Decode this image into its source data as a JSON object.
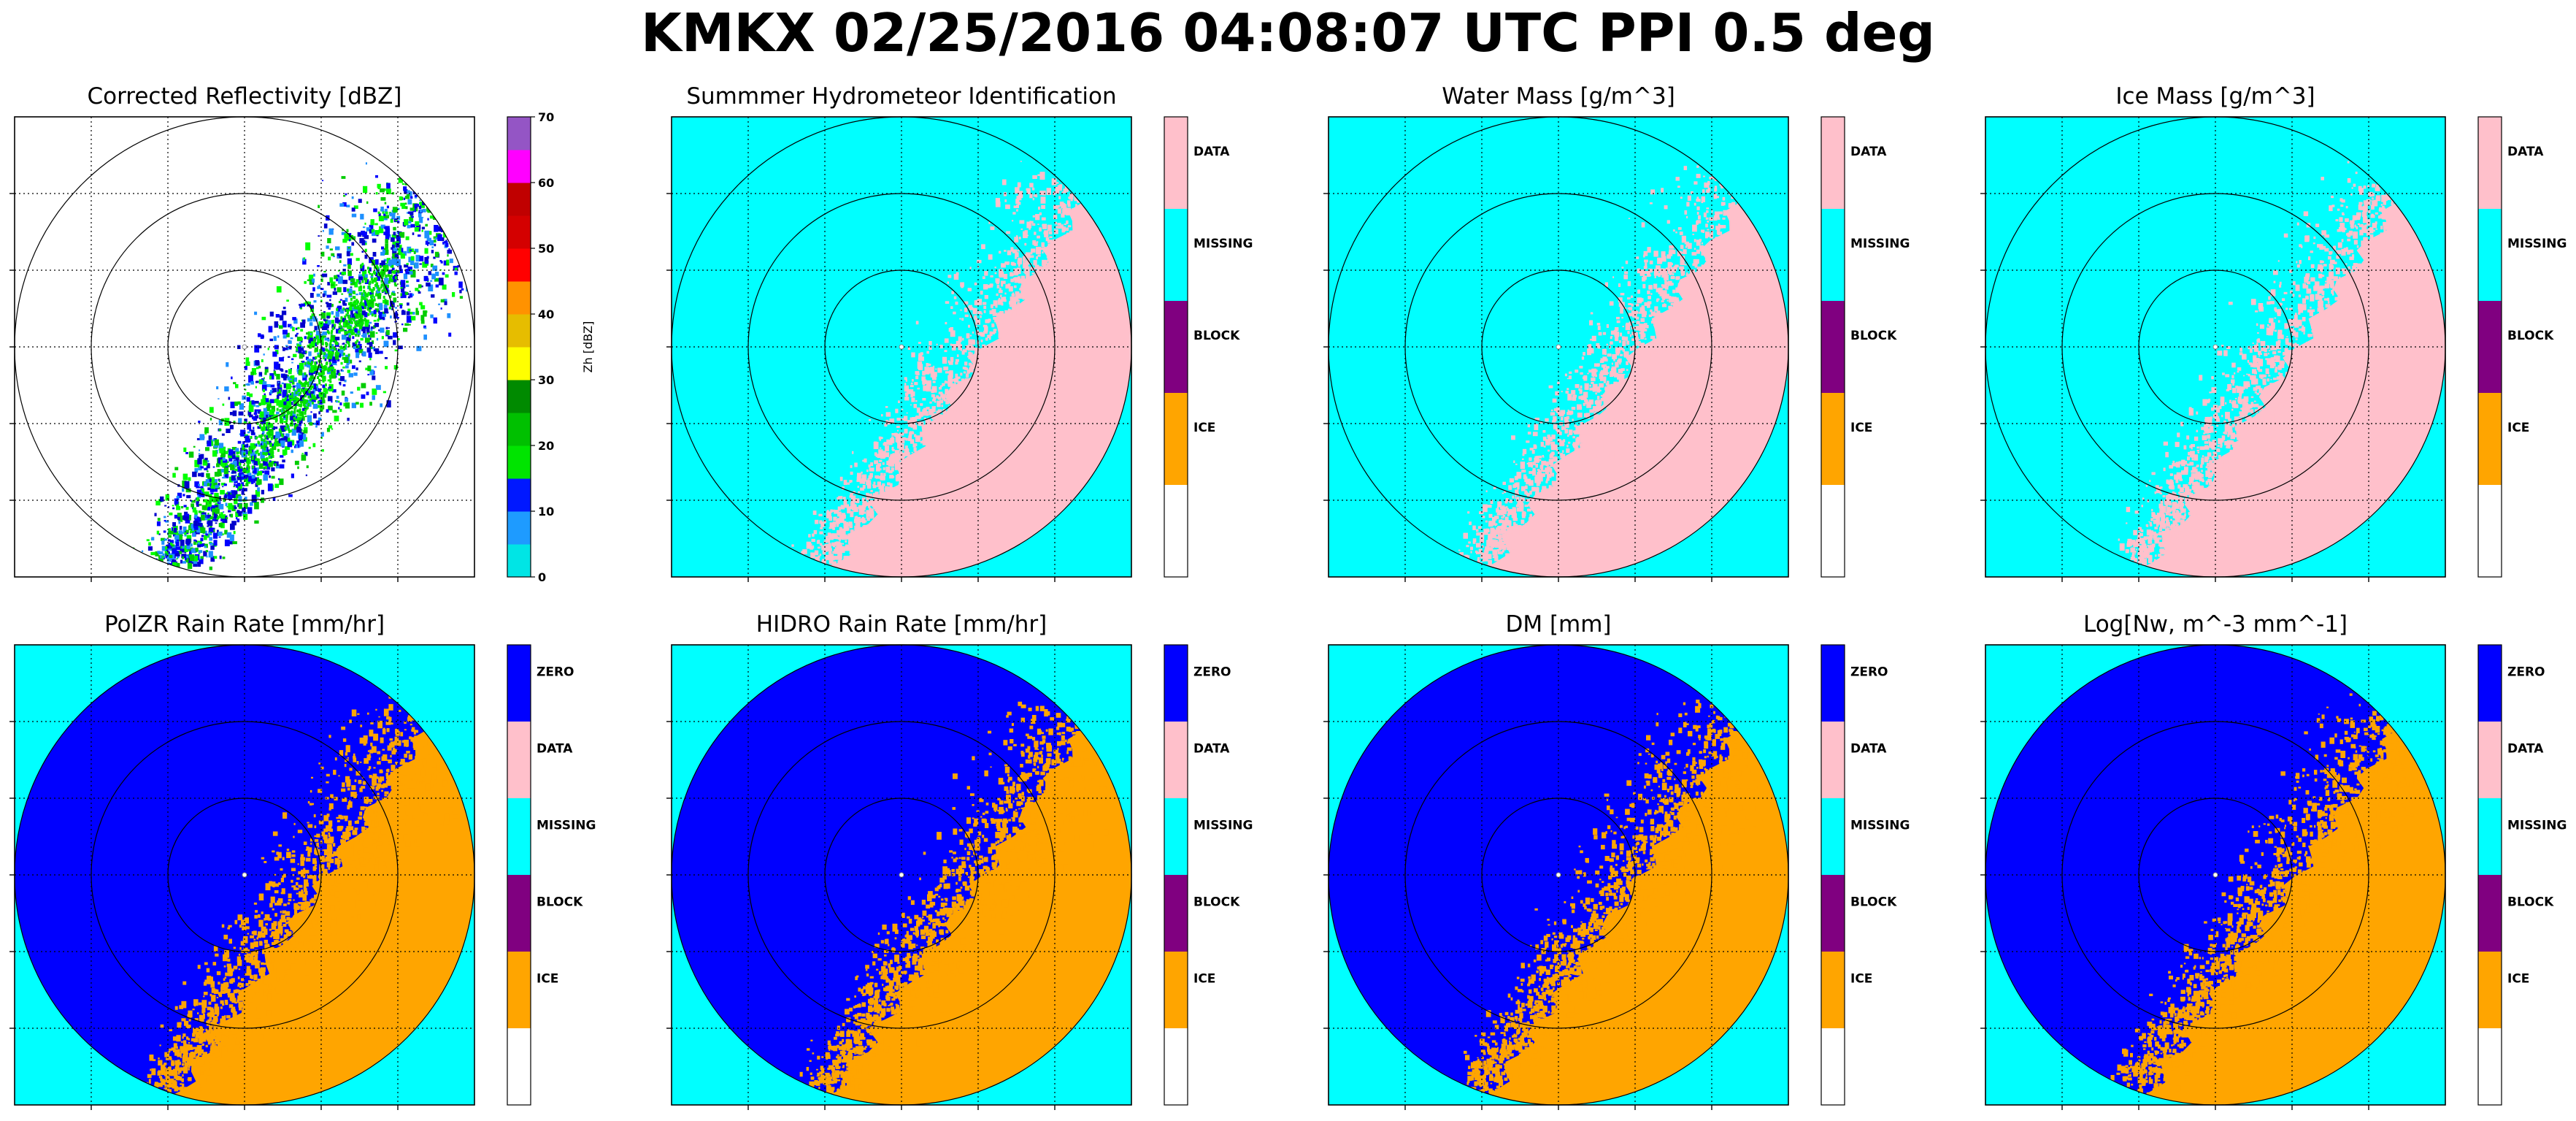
{
  "figure": {
    "suptitle": "KMKX 02/25/2016 04:08:07 UTC PPI 0.5 deg"
  },
  "chart_data": [
    {
      "type": "heatmap",
      "title": "Corrected Reflectivity [dBZ]",
      "background": "#ffffff",
      "echo_palette": [
        "#0000ff",
        "#1e90ff",
        "#00cc00",
        "#00ff00",
        "#0000cc"
      ],
      "colorbar": {
        "kind": "continuous",
        "label": "Zh [dBZ]",
        "range": [
          0,
          70
        ],
        "ticks": [
          "0",
          "10",
          "20",
          "30",
          "40",
          "50",
          "60",
          "70"
        ],
        "colors": [
          "#00e5e5",
          "#1e9bff",
          "#0018ff",
          "#00e400",
          "#00c000",
          "#008a00",
          "#ffff00",
          "#e6bd00",
          "#ff9200",
          "#ff0000",
          "#d40000",
          "#c00000",
          "#ff00ff",
          "#9455c5"
        ]
      }
    },
    {
      "type": "heatmap",
      "title": "Summmer Hydrometeor Identification",
      "background": "#00ffff",
      "echo_color": "#ffc0cb",
      "colorbar": {
        "kind": "categorical",
        "entries": [
          {
            "label": "DATA",
            "color": "#ffc0cb"
          },
          {
            "label": "MISSING",
            "color": "#00ffff"
          },
          {
            "label": "BLOCK",
            "color": "#800080"
          },
          {
            "label": "ICE",
            "color": "#ffa500"
          },
          {
            "label": "",
            "color": "#ffffff"
          }
        ]
      }
    },
    {
      "type": "heatmap",
      "title": "Water Mass [g/m^3]",
      "background": "#00ffff",
      "echo_color": "#ffc0cb",
      "colorbar": {
        "kind": "categorical",
        "entries": [
          {
            "label": "DATA",
            "color": "#ffc0cb"
          },
          {
            "label": "MISSING",
            "color": "#00ffff"
          },
          {
            "label": "BLOCK",
            "color": "#800080"
          },
          {
            "label": "ICE",
            "color": "#ffa500"
          },
          {
            "label": "",
            "color": "#ffffff"
          }
        ]
      }
    },
    {
      "type": "heatmap",
      "title": "Ice Mass [g/m^3]",
      "background": "#00ffff",
      "echo_color": "#ffc0cb",
      "colorbar": {
        "kind": "categorical",
        "entries": [
          {
            "label": "DATA",
            "color": "#ffc0cb"
          },
          {
            "label": "MISSING",
            "color": "#00ffff"
          },
          {
            "label": "BLOCK",
            "color": "#800080"
          },
          {
            "label": "ICE",
            "color": "#ffa500"
          },
          {
            "label": "",
            "color": "#ffffff"
          }
        ]
      }
    },
    {
      "type": "heatmap",
      "title": "PolZR Rain Rate [mm/hr]",
      "background": "#00ffff",
      "disk_color": "#0000ff",
      "echo_color": "#ffa500",
      "colorbar": {
        "kind": "categorical",
        "entries": [
          {
            "label": "ZERO",
            "color": "#0000ff"
          },
          {
            "label": "DATA",
            "color": "#ffc0cb"
          },
          {
            "label": "MISSING",
            "color": "#00ffff"
          },
          {
            "label": "BLOCK",
            "color": "#800080"
          },
          {
            "label": "ICE",
            "color": "#ffa500"
          },
          {
            "label": "",
            "color": "#ffffff"
          }
        ]
      }
    },
    {
      "type": "heatmap",
      "title": "HIDRO Rain Rate [mm/hr]",
      "background": "#00ffff",
      "disk_color": "#0000ff",
      "echo_color": "#ffa500",
      "colorbar": {
        "kind": "categorical",
        "entries": [
          {
            "label": "ZERO",
            "color": "#0000ff"
          },
          {
            "label": "DATA",
            "color": "#ffc0cb"
          },
          {
            "label": "MISSING",
            "color": "#00ffff"
          },
          {
            "label": "BLOCK",
            "color": "#800080"
          },
          {
            "label": "ICE",
            "color": "#ffa500"
          },
          {
            "label": "",
            "color": "#ffffff"
          }
        ]
      }
    },
    {
      "type": "heatmap",
      "title": "DM [mm]",
      "background": "#00ffff",
      "disk_color": "#0000ff",
      "echo_color": "#ffa500",
      "colorbar": {
        "kind": "categorical",
        "entries": [
          {
            "label": "ZERO",
            "color": "#0000ff"
          },
          {
            "label": "DATA",
            "color": "#ffc0cb"
          },
          {
            "label": "MISSING",
            "color": "#00ffff"
          },
          {
            "label": "BLOCK",
            "color": "#800080"
          },
          {
            "label": "ICE",
            "color": "#ffa500"
          },
          {
            "label": "",
            "color": "#ffffff"
          }
        ]
      }
    },
    {
      "type": "heatmap",
      "title": "Log[Nw, m^-3 mm^-1]",
      "background": "#00ffff",
      "disk_color": "#0000ff",
      "echo_color": "#ffa500",
      "colorbar": {
        "kind": "categorical",
        "entries": [
          {
            "label": "ZERO",
            "color": "#0000ff"
          },
          {
            "label": "DATA",
            "color": "#ffc0cb"
          },
          {
            "label": "MISSING",
            "color": "#00ffff"
          },
          {
            "label": "BLOCK",
            "color": "#800080"
          },
          {
            "label": "ICE",
            "color": "#ffa500"
          },
          {
            "label": "",
            "color": "#ffffff"
          }
        ]
      }
    }
  ]
}
